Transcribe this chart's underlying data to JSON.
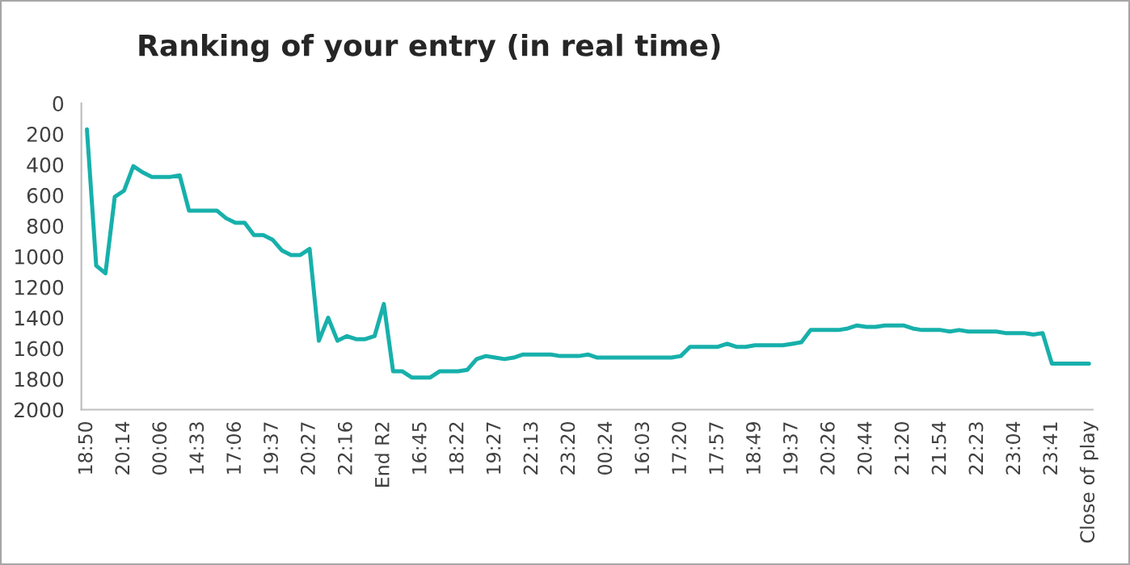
{
  "chart_data": {
    "type": "line",
    "title": "Ranking of your entry (in real time)",
    "categories": [
      "18:50",
      null,
      null,
      null,
      "20:14",
      null,
      null,
      null,
      "00:06",
      null,
      null,
      null,
      "14:33",
      null,
      null,
      null,
      "17:06",
      null,
      null,
      null,
      "19:37",
      null,
      null,
      null,
      "20:27",
      null,
      null,
      null,
      "22:16",
      null,
      null,
      null,
      "End R2",
      null,
      null,
      null,
      "16:45",
      null,
      null,
      null,
      "18:22",
      null,
      null,
      null,
      "19:27",
      null,
      null,
      null,
      "22:13",
      null,
      null,
      null,
      "23:20",
      null,
      null,
      null,
      "00:24",
      null,
      null,
      null,
      "16:03",
      null,
      null,
      null,
      "17:20",
      null,
      null,
      null,
      "17:57",
      null,
      null,
      null,
      "18:49",
      null,
      null,
      null,
      "19:37",
      null,
      null,
      null,
      "20:26",
      null,
      null,
      null,
      "20:44",
      null,
      null,
      null,
      "21:20",
      null,
      null,
      null,
      "21:54",
      null,
      null,
      null,
      "22:23",
      null,
      null,
      null,
      "23:04",
      null,
      null,
      null,
      "23:41",
      null,
      null,
      null,
      "Close of play"
    ],
    "series": [
      {
        "color": "#17b0ab",
        "values": [
          170,
          1060,
          1110,
          610,
          570,
          410,
          450,
          480,
          480,
          480,
          470,
          700,
          700,
          700,
          700,
          750,
          780,
          780,
          860,
          860,
          890,
          960,
          990,
          990,
          950,
          1550,
          1400,
          1550,
          1520,
          1540,
          1540,
          1520,
          1310,
          1750,
          1750,
          1790,
          1790,
          1790,
          1750,
          1750,
          1750,
          1740,
          1670,
          1650,
          1660,
          1670,
          1660,
          1640,
          1640,
          1640,
          1640,
          1650,
          1650,
          1650,
          1640,
          1660,
          1660,
          1660,
          1660,
          1660,
          1660,
          1660,
          1660,
          1660,
          1650,
          1590,
          1590,
          1590,
          1590,
          1570,
          1590,
          1590,
          1580,
          1580,
          1580,
          1580,
          1570,
          1560,
          1480,
          1480,
          1480,
          1480,
          1470,
          1450,
          1460,
          1460,
          1450,
          1450,
          1450,
          1470,
          1480,
          1480,
          1480,
          1490,
          1480,
          1490,
          1490,
          1490,
          1490,
          1500,
          1500,
          1500,
          1510,
          1500,
          1700,
          1700,
          1700,
          1700,
          1700
        ]
      }
    ],
    "ylim": [
      2000,
      0
    ],
    "yticks": [
      0,
      200,
      400,
      600,
      800,
      1000,
      1200,
      1400,
      1600,
      1800,
      2000
    ],
    "grid": false,
    "legend": false,
    "marker": "none",
    "line_style": "solid"
  }
}
